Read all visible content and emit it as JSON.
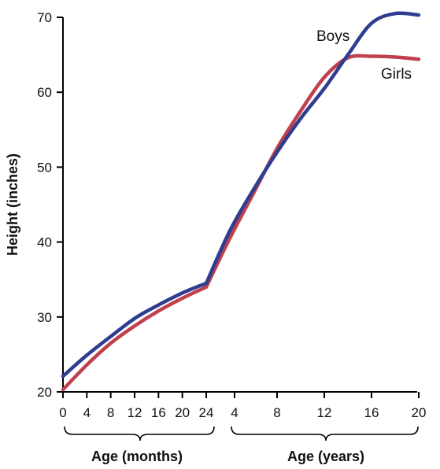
{
  "chart_data": {
    "type": "line",
    "ylabel": "Height (inches)",
    "ylim": [
      20,
      70
    ],
    "y_ticks": [
      "20",
      "30",
      "40",
      "50",
      "60",
      "70"
    ],
    "segments": [
      {
        "label": "Age (months)",
        "unit": "months",
        "xlim": [
          0,
          24
        ],
        "ticks": [
          "0",
          "4",
          "8",
          "12",
          "16",
          "20",
          "24"
        ]
      },
      {
        "label": "Age (years)",
        "unit": "years",
        "xlim": [
          2,
          20
        ],
        "ticks": [
          "4",
          "8",
          "12",
          "16",
          "20"
        ]
      }
    ],
    "series": [
      {
        "name": "Boys",
        "color": "#2e3d8f",
        "months": {
          "x": [
            0,
            4,
            8,
            12,
            16,
            20,
            24
          ],
          "y": [
            22.1,
            24.9,
            27.4,
            29.8,
            31.6,
            33.2,
            34.5
          ]
        },
        "years": {
          "x": [
            2,
            4,
            6,
            8,
            10,
            12,
            14,
            16,
            18,
            20
          ],
          "y": [
            34.5,
            41.5,
            47.0,
            52.0,
            56.5,
            60.5,
            65.0,
            69.2,
            70.5,
            70.3
          ]
        }
      },
      {
        "name": "Girls",
        "color": "#c0404d",
        "months": {
          "x": [
            0,
            4,
            8,
            12,
            16,
            20,
            24
          ],
          "y": [
            20.3,
            23.6,
            26.5,
            28.8,
            30.8,
            32.5,
            34.0
          ]
        },
        "years": {
          "x": [
            2,
            4,
            6,
            8,
            10,
            12,
            14,
            16,
            18,
            20
          ],
          "y": [
            34.0,
            40.5,
            46.5,
            52.5,
            57.5,
            62.0,
            64.6,
            64.8,
            64.7,
            64.4
          ]
        }
      }
    ]
  }
}
